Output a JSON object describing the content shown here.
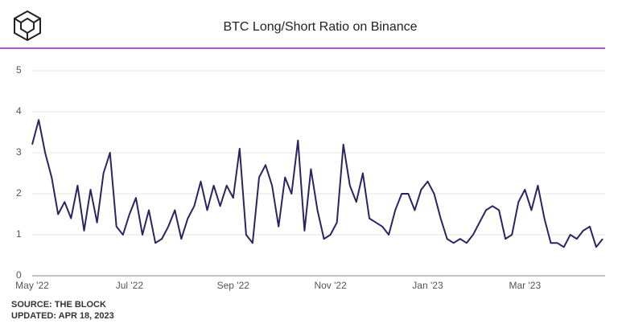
{
  "chart_data": {
    "type": "line",
    "title": "BTC Long/Short Ratio on Binance",
    "source": "SOURCE: THE BLOCK",
    "updated": "UPDATED: APR 18, 2023",
    "categories": [
      "May '22",
      null,
      null,
      null,
      null,
      null,
      null,
      null,
      null,
      null,
      null,
      null,
      null,
      null,
      null,
      "Jul '22",
      null,
      null,
      null,
      null,
      null,
      null,
      null,
      null,
      null,
      null,
      null,
      null,
      null,
      null,
      null,
      "Sep '22",
      null,
      null,
      null,
      null,
      null,
      null,
      null,
      null,
      null,
      null,
      null,
      null,
      null,
      null,
      "Nov '22",
      null,
      null,
      null,
      null,
      null,
      null,
      null,
      null,
      null,
      null,
      null,
      null,
      null,
      null,
      "Jan '23",
      null,
      null,
      null,
      null,
      null,
      null,
      null,
      null,
      null,
      null,
      null,
      null,
      null,
      null,
      "Mar '23",
      null,
      null,
      null,
      null,
      null,
      null,
      null,
      null,
      null,
      null,
      null,
      null
    ],
    "series": [
      {
        "name": "BTC Long/Short Ratio",
        "color": "#2b2462",
        "values": [
          3.2,
          3.8,
          3.0,
          2.4,
          1.5,
          1.8,
          1.4,
          2.2,
          1.1,
          2.1,
          1.3,
          2.5,
          3.0,
          1.2,
          1.0,
          1.5,
          1.9,
          1.0,
          1.6,
          0.8,
          0.9,
          1.2,
          1.6,
          0.9,
          1.4,
          1.7,
          2.3,
          1.6,
          2.2,
          1.7,
          2.2,
          1.9,
          3.1,
          1.0,
          0.8,
          2.4,
          2.7,
          2.2,
          1.2,
          2.4,
          2.0,
          3.3,
          1.1,
          2.6,
          1.6,
          0.9,
          1.0,
          1.3,
          3.2,
          2.2,
          1.8,
          2.5,
          1.4,
          1.3,
          1.2,
          1.0,
          1.6,
          2.0,
          2.0,
          1.6,
          2.1,
          2.3,
          2.0,
          1.4,
          0.9,
          0.8,
          0.9,
          0.8,
          1.0,
          1.3,
          1.6,
          1.7,
          1.6,
          0.9,
          1.0,
          1.8,
          2.1,
          1.6,
          2.2,
          1.4,
          0.8,
          0.8,
          0.7,
          1.0,
          0.9,
          1.1,
          1.2,
          0.7,
          0.9
        ]
      }
    ],
    "ylim": [
      0,
      5
    ],
    "yticks": [
      0,
      1,
      2,
      3,
      4,
      5
    ],
    "grid": true
  }
}
